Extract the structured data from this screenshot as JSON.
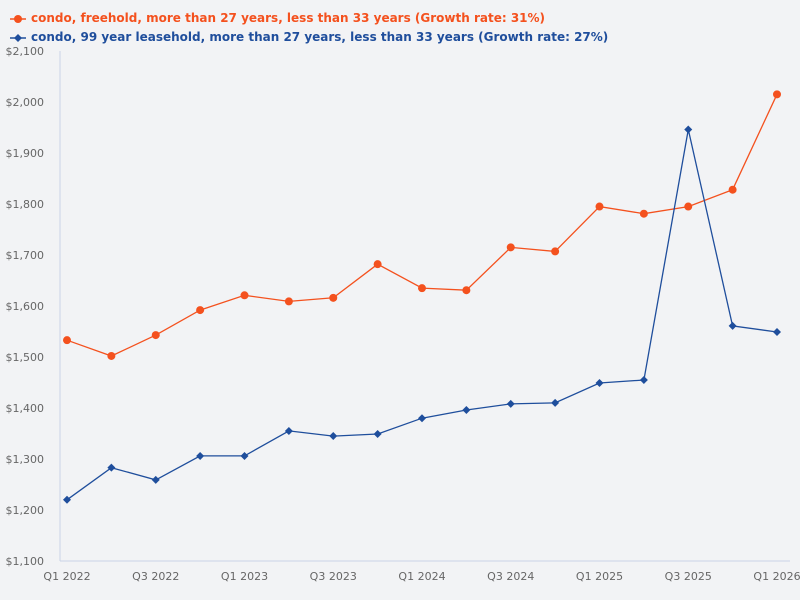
{
  "legend": [
    {
      "label": "condo, freehold, more than 27 years, less than 33 years (Growth rate: 31%)",
      "color": "#f4511e",
      "marker": "circle"
    },
    {
      "label": "condo, 99 year leasehold, more than 27 years, less than 33 years (Growth rate: 27%)",
      "color": "#1f4e9c",
      "marker": "diamond"
    }
  ],
  "chart_data": {
    "type": "line",
    "title": "",
    "xlabel": "",
    "ylabel": "",
    "ylim": [
      1100,
      2100
    ],
    "yticks": [
      "$1,100",
      "$1,200",
      "$1,300",
      "$1,400",
      "$1,500",
      "$1,600",
      "$1,700",
      "$1,800",
      "$1,900",
      "$2,000",
      "$2,100"
    ],
    "x": [
      "Q1 2022",
      "Q2 2022",
      "Q3 2022",
      "Q4 2022",
      "Q1 2023",
      "Q2 2023",
      "Q3 2023",
      "Q4 2023",
      "Q1 2024",
      "Q2 2024",
      "Q3 2024",
      "Q4 2024",
      "Q1 2025",
      "Q2 2025",
      "Q3 2025",
      "Q4 2025",
      "Q1 2026"
    ],
    "xtick_labels": [
      "Q1 2022",
      "Q3 2022",
      "Q1 2023",
      "Q3 2023",
      "Q1 2024",
      "Q3 2024",
      "Q1 2025",
      "Q3 2025",
      "Q1 2026"
    ],
    "grid": false,
    "legend_position": "top-left",
    "series": [
      {
        "name": "condo, freehold, more than 27 years, less than 33 years (Growth rate: 31%)",
        "color": "#f4511e",
        "marker": "circle",
        "values": [
          1533,
          1502,
          1543,
          1592,
          1621,
          1609,
          1616,
          1682,
          1635,
          1631,
          1715,
          1707,
          1795,
          1781,
          1795,
          1828,
          2015
        ]
      },
      {
        "name": "condo, 99 year leasehold, more than 27 years, less than 33 years (Growth rate: 27%)",
        "color": "#1f4e9c",
        "marker": "diamond",
        "values": [
          1220,
          1283,
          1259,
          1306,
          1306,
          1355,
          1345,
          1349,
          1380,
          1396,
          1408,
          1410,
          1449,
          1455,
          1946,
          1561,
          1549
        ]
      }
    ]
  }
}
